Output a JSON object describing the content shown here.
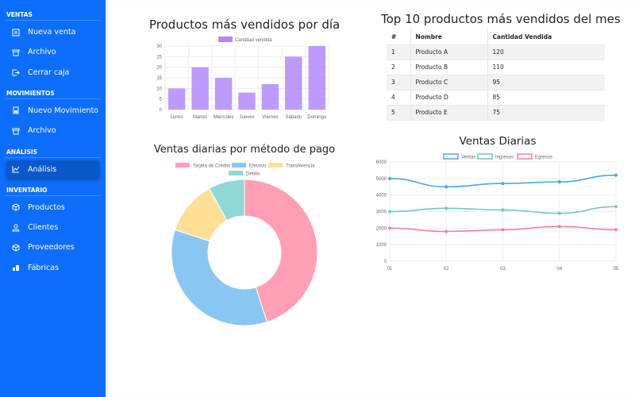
{
  "sidebar": {
    "sections": [
      {
        "title": "VENTAS",
        "items": [
          {
            "label": "Nueva venta",
            "icon": "receipt-icon"
          },
          {
            "label": "Archivo",
            "icon": "archive-icon"
          },
          {
            "label": "Cerrar caja",
            "icon": "logout-icon"
          }
        ]
      },
      {
        "title": "MOVIMIENTOS",
        "items": [
          {
            "label": "Nuevo Movimiento",
            "icon": "calculator-icon"
          },
          {
            "label": "Archivo",
            "icon": "archive-icon"
          }
        ]
      },
      {
        "title": "ANÁLISIS",
        "items": [
          {
            "label": "Análisis",
            "icon": "chart-line-icon",
            "active": true
          }
        ]
      },
      {
        "title": "INVENTARIO",
        "items": [
          {
            "label": "Productos",
            "icon": "box-icon"
          },
          {
            "label": "Clientes",
            "icon": "user-icon"
          },
          {
            "label": "Proveedores",
            "icon": "box-icon"
          },
          {
            "label": "Fábricas",
            "icon": "building-icon"
          }
        ]
      }
    ],
    "color": "#0d6efd"
  },
  "bar_title": "Productos más vendidos por día",
  "doughnut_title": "Ventas diarias por método de pago",
  "table_title": "Top 10 productos más vendidos del mes",
  "line_title": "Ventas Diarias",
  "table": {
    "headers": [
      "#",
      "Nombre",
      "Cantidad Vendida"
    ],
    "rows": [
      [
        "1",
        "Producto A",
        "120"
      ],
      [
        "2",
        "Producto B",
        "110"
      ],
      [
        "3",
        "Producto C",
        "95"
      ],
      [
        "4",
        "Producto D",
        "85"
      ],
      [
        "5",
        "Producto E",
        "75"
      ]
    ]
  },
  "chart_data": [
    {
      "type": "bar",
      "categories": [
        "Lunes",
        "Martes",
        "Miércoles",
        "Jueves",
        "Viernes",
        "Sábado",
        "Domingo"
      ],
      "series": [
        {
          "name": "Cantidad vendida",
          "values": [
            10,
            20,
            15,
            8,
            12,
            25,
            30
          ],
          "color": "#b388ff"
        }
      ],
      "ylim": [
        0,
        30
      ],
      "yticks": [
        0,
        5,
        10,
        15,
        20,
        25,
        30
      ],
      "legend": "top",
      "grid": true
    },
    {
      "type": "pie",
      "variant": "doughnut",
      "labels": [
        "Tarjeta de Crédito",
        "Efectivo",
        "Transferencia",
        "Débito"
      ],
      "values": [
        45,
        35,
        12,
        8
      ],
      "colors": [
        "#ff9fb3",
        "#8ac6f2",
        "#ffdf96",
        "#90d8d8"
      ],
      "legend": "top"
    },
    {
      "type": "line",
      "x": [
        "01",
        "02",
        "03",
        "04",
        "05"
      ],
      "series": [
        {
          "name": "Ventas",
          "values": [
            5000,
            4500,
            4700,
            4800,
            5200
          ],
          "color": "#4aa6e8"
        },
        {
          "name": "Ingresos",
          "values": [
            3000,
            3200,
            3100,
            2900,
            3300
          ],
          "color": "#6cc9c6"
        },
        {
          "name": "Egresos",
          "values": [
            2000,
            1800,
            1900,
            2100,
            1900
          ],
          "color": "#ff7d98"
        }
      ],
      "ylim": [
        0,
        6000
      ],
      "yticks": [
        0,
        1000,
        2000,
        3000,
        4000,
        5000,
        6000
      ],
      "legend": "top",
      "grid": true
    }
  ]
}
